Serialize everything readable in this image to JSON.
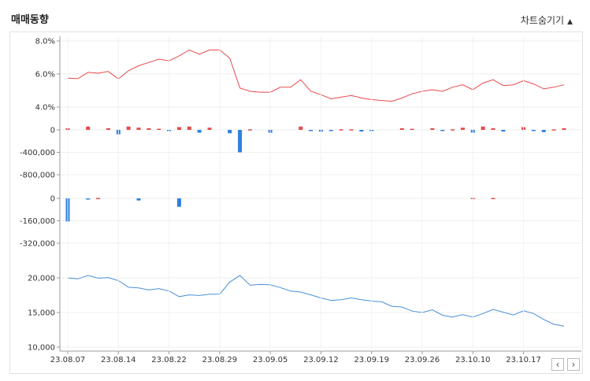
{
  "header": {
    "title": "매매동향",
    "toggle_label": "차트숨기기",
    "toggle_icon": "triangle-up-icon"
  },
  "nav": {
    "prev": "‹",
    "next": "›"
  },
  "chart_data": [
    {
      "type": "line",
      "name": "price-ratio",
      "color": "#e84a4a",
      "y_ticks": [
        "8.0%",
        "6.0%",
        "4.0%"
      ],
      "ylim": [
        4.0,
        8.0
      ],
      "values": [
        5.75,
        5.72,
        6.1,
        6.05,
        6.15,
        5.7,
        6.2,
        6.5,
        6.7,
        6.9,
        6.8,
        7.1,
        7.45,
        7.2,
        7.45,
        7.45,
        6.95,
        5.15,
        4.95,
        4.9,
        4.9,
        5.2,
        5.2,
        5.65,
        4.95,
        4.75,
        4.5,
        4.6,
        4.7,
        4.55,
        4.45,
        4.4,
        4.35,
        4.55,
        4.8,
        4.95,
        5.05,
        4.95,
        5.2,
        5.35,
        5.05,
        5.45,
        5.65,
        5.3,
        5.35,
        5.6,
        5.4,
        5.1,
        5.2,
        5.35
      ]
    },
    {
      "type": "bar",
      "name": "flow-1",
      "pos_color": "#e84a4a",
      "neg_color": "#2f80e0",
      "y_ticks": [
        "0",
        "-400,000",
        "-800,000"
      ],
      "ylim": [
        -800000,
        0
      ],
      "values": [
        30000,
        0,
        60000,
        0,
        30000,
        -80000,
        60000,
        40000,
        30000,
        20000,
        -20000,
        50000,
        60000,
        -50000,
        40000,
        0,
        -60000,
        -400000,
        10000,
        0,
        -50000,
        0,
        0,
        60000,
        -20000,
        -30000,
        -20000,
        10000,
        10000,
        -30000,
        -10000,
        0,
        0,
        30000,
        20000,
        0,
        30000,
        -20000,
        10000,
        40000,
        -50000,
        60000,
        30000,
        -30000,
        0,
        50000,
        -20000,
        -40000,
        10000,
        30000
      ]
    },
    {
      "type": "bar",
      "name": "flow-2",
      "pos_color": "#e84a4a",
      "neg_color": "#2f80e0",
      "y_ticks": [
        "0",
        "-160,000",
        "-320,000"
      ],
      "ylim": [
        -320000,
        0
      ],
      "values": [
        -165000,
        0,
        -5000,
        3000,
        0,
        0,
        0,
        -15000,
        0,
        0,
        0,
        -60000,
        0,
        0,
        0,
        0,
        0,
        0,
        0,
        0,
        0,
        0,
        0,
        0,
        0,
        0,
        0,
        0,
        0,
        0,
        0,
        0,
        0,
        0,
        0,
        0,
        0,
        0,
        0,
        0,
        3000,
        0,
        3000,
        0,
        0,
        0,
        0,
        0,
        0,
        0
      ]
    },
    {
      "type": "line",
      "name": "price",
      "color": "#4a90d9",
      "y_ticks": [
        "20,000",
        "15,000",
        "10,000"
      ],
      "ylim": [
        10000,
        20000
      ],
      "values": [
        20000,
        19850,
        20350,
        19950,
        20050,
        19600,
        18650,
        18550,
        18250,
        18450,
        18100,
        17300,
        17550,
        17450,
        17650,
        17650,
        19400,
        20350,
        18950,
        19050,
        19000,
        18600,
        18100,
        17950,
        17550,
        17100,
        16750,
        16850,
        17100,
        16850,
        16650,
        16550,
        15900,
        15800,
        15200,
        15000,
        15400,
        14600,
        14350,
        14700,
        14350,
        14850,
        15450,
        15050,
        14650,
        15250,
        14850,
        14000,
        13300,
        13050
      ]
    }
  ],
  "x_tick_labels": [
    "23.08.07",
    "23.08.14",
    "23.08.22",
    "23.08.29",
    "23.09.05",
    "23.09.12",
    "23.09.19",
    "23.09.26",
    "23.10.10",
    "23.10.17"
  ],
  "x_tick_index": [
    0,
    5,
    10,
    15,
    20,
    25,
    30,
    35,
    40,
    45
  ]
}
